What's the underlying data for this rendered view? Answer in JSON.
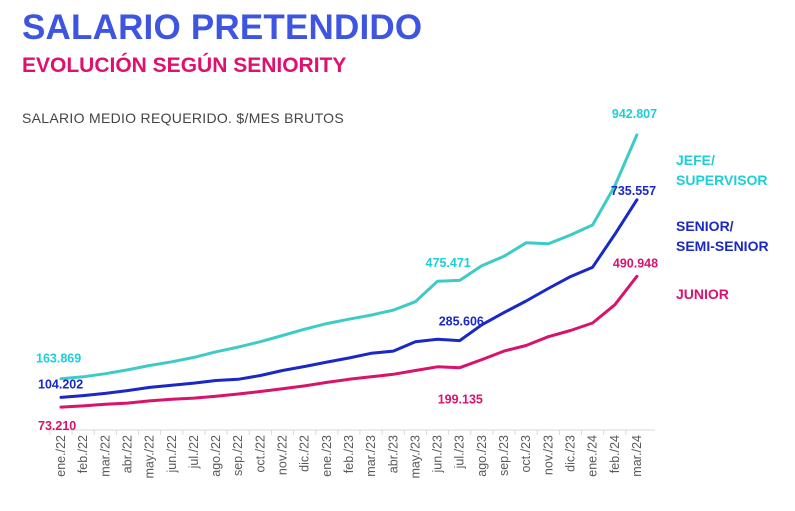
{
  "header": {
    "title": "SALARIO PRETENDIDO",
    "subtitle": "EVOLUCIÓN SEGÚN SENIORITY"
  },
  "colors": {
    "title": "#3d55e0",
    "subtitle": "#e0106e",
    "jefe": "#3ecbc7",
    "jefe_label": "#1ecfd6",
    "senior": "#1a28c4",
    "junior": "#d8136b"
  },
  "chart_data": {
    "type": "line",
    "title": "SALARIO PRETENDIDO",
    "subtitle": "EVOLUCIÓN SEGÚN SENIORITY",
    "ylabel": "SALARIO MEDIO REQUERIDO. $/MES BRUTOS",
    "xlabel": "",
    "grid": false,
    "ylim": [
      0,
      1000000
    ],
    "categories": [
      "ene./22",
      "feb./22",
      "mar./22",
      "abr./22",
      "may./22",
      "jun./22",
      "jul./22",
      "ago./22",
      "sep./22",
      "oct./22",
      "nov./22",
      "dic./22",
      "ene./23",
      "feb./23",
      "mar./23",
      "abr./23",
      "may./23",
      "jun./23",
      "jul./23",
      "ago./23",
      "sep./23",
      "oct./23",
      "nov./23",
      "dic./23",
      "ene./24",
      "feb./24",
      "mar./24"
    ],
    "series": [
      {
        "key": "jefe",
        "name": "JEFE/ SUPERVISOR",
        "name_lines": [
          "JEFE/",
          "SUPERVISOR"
        ],
        "values": [
          163869,
          170000,
          180000,
          192000,
          206000,
          218000,
          232000,
          250000,
          265000,
          282000,
          302000,
          322000,
          340000,
          354000,
          367000,
          383000,
          410000,
          475471,
          478000,
          525000,
          555000,
          598000,
          595000,
          623000,
          655000,
          780000,
          942807
        ],
        "data_labels": [
          {
            "index": 0,
            "text": "163.869"
          },
          {
            "index": 17,
            "text": "475.471"
          },
          {
            "index": 26,
            "text": "942.807"
          }
        ]
      },
      {
        "key": "senior",
        "name": "SENIOR/ SEMI-SENIOR",
        "name_lines": [
          "SENIOR/",
          "SEMI-SENIOR"
        ],
        "values": [
          104202,
          110000,
          117000,
          126000,
          136000,
          143000,
          150000,
          158000,
          162000,
          174000,
          190000,
          203000,
          217000,
          230000,
          245000,
          252000,
          282000,
          290000,
          285606,
          336000,
          375000,
          412000,
          452000,
          490000,
          520000,
          625000,
          735557
        ],
        "data_labels": [
          {
            "index": 0,
            "text": "104.202"
          },
          {
            "index": 18,
            "text": "285.606"
          },
          {
            "index": 26,
            "text": "735.557"
          }
        ]
      },
      {
        "key": "junior",
        "name": "JUNIOR",
        "name_lines": [
          "JUNIOR"
        ],
        "values": [
          73210,
          77000,
          82000,
          86000,
          93000,
          98000,
          102000,
          108000,
          115000,
          123000,
          132000,
          141000,
          152000,
          162000,
          170000,
          178000,
          190000,
          202000,
          199135,
          225000,
          252000,
          270000,
          298000,
          318000,
          342000,
          400000,
          490948
        ],
        "data_labels": [
          {
            "index": 0,
            "text": "73.210"
          },
          {
            "index": 18,
            "text": "199.135"
          },
          {
            "index": 26,
            "text": "490.948"
          }
        ]
      }
    ]
  }
}
